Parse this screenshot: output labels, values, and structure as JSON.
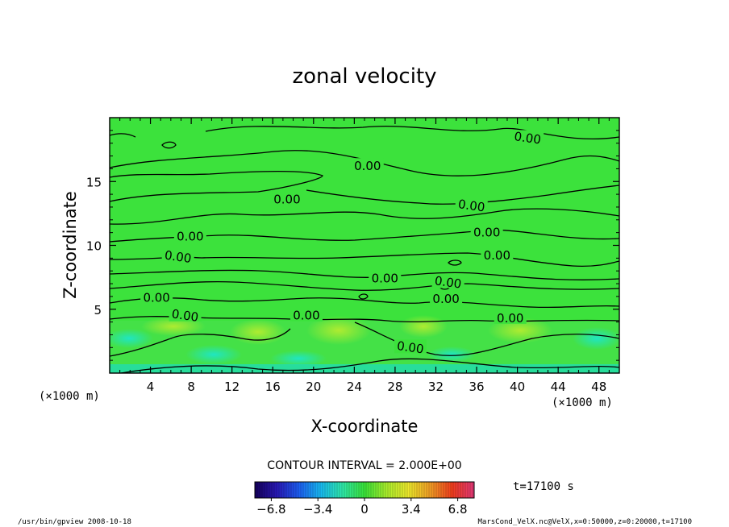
{
  "chart_data": {
    "type": "heatmap",
    "title": "zonal velocity",
    "xlabel": "X-coordinate",
    "ylabel": "Z-coordinate",
    "x_unit": "(×1000 m)",
    "y_unit": "(×1000 m)",
    "xlim": [
      0,
      50
    ],
    "ylim": [
      0,
      20
    ],
    "x_ticks": [
      4,
      8,
      12,
      16,
      20,
      24,
      28,
      32,
      36,
      40,
      44,
      48
    ],
    "y_ticks": [
      5,
      10,
      15
    ],
    "contour_interval_text": "CONTOUR INTERVAL = 2.000E+00",
    "contour_labels": [
      {
        "text": "0.00",
        "x": 41.0,
        "z": 18.4
      },
      {
        "text": "0.00",
        "x": 25.3,
        "z": 16.2
      },
      {
        "text": "0.00",
        "x": 17.4,
        "z": 13.6
      },
      {
        "text": "0.00",
        "x": 35.5,
        "z": 13.1
      },
      {
        "text": "0.00",
        "x": 7.9,
        "z": 10.7
      },
      {
        "text": "0.00",
        "x": 37.0,
        "z": 11.0
      },
      {
        "text": "0.00",
        "x": 6.7,
        "z": 9.1
      },
      {
        "text": "0.00",
        "x": 38.0,
        "z": 9.2
      },
      {
        "text": "0.00",
        "x": 27.0,
        "z": 7.4
      },
      {
        "text": "0.00",
        "x": 33.2,
        "z": 7.1
      },
      {
        "text": "0.00",
        "x": 4.6,
        "z": 5.9
      },
      {
        "text": "0.00",
        "x": 33.0,
        "z": 5.8
      },
      {
        "text": "0.00",
        "x": 7.4,
        "z": 4.5
      },
      {
        "text": "0.00",
        "x": 19.3,
        "z": 4.5
      },
      {
        "text": "0.00",
        "x": 39.3,
        "z": 4.3
      },
      {
        "text": "0.00",
        "x": 29.5,
        "z": 2.0
      }
    ],
    "colorbar": {
      "ticks": [
        -6.8,
        -3.4,
        0,
        3.4,
        6.8
      ],
      "tick_labels": [
        "−6.8",
        "−3.4",
        "0",
        "3.4",
        "6.8"
      ],
      "range": [
        -8,
        8
      ],
      "colors": [
        "#14005a",
        "#2818b4",
        "#1c5cf0",
        "#18b8f0",
        "#2ee8a8",
        "#38e238",
        "#a8ec2c",
        "#ece82c",
        "#f09c24",
        "#f03c1c",
        "#e03878"
      ]
    },
    "field_color": "#3ce23c"
  },
  "time_label": "t=17100 s",
  "footer_left": "/usr/bin/gpview   2008-10-18",
  "footer_right": "MarsCond_VelX.nc@VelX,x=0:50000,z=0:20000,t=17100"
}
